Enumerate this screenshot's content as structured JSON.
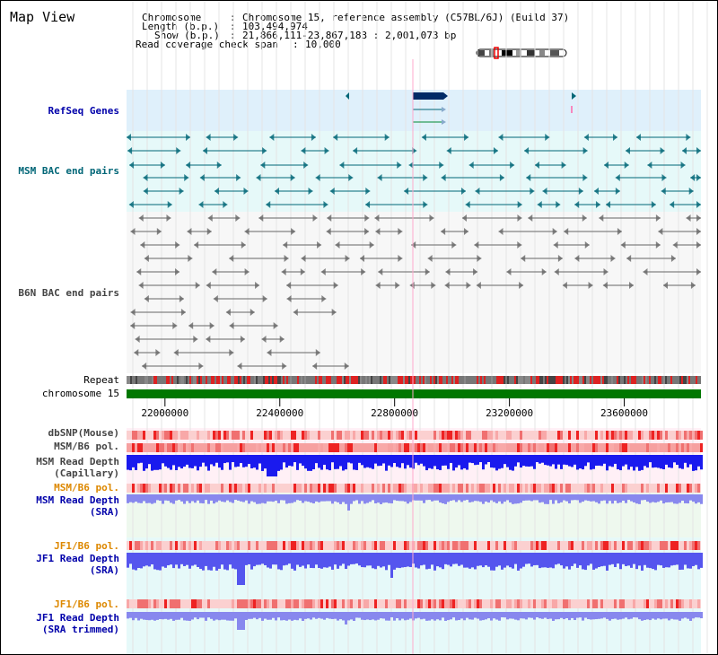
{
  "page": {
    "title": "Map View"
  },
  "header": {
    "chromosome_label": "Chromosome",
    "chromosome_value": "Chromosome 15, reference assembly (C57BL/6J) (Build 37)",
    "length_label": "Length (b.p.)",
    "length_value": "103,494,974",
    "show_label": "Show (b.p.)",
    "show_value": "21,866,111-23,867,183 : 2,001,073 bp",
    "coverage_label": "Read coverage check span",
    "coverage_value": "10,000"
  },
  "tracks": {
    "refseq": "RefSeq Genes",
    "msm_bac": "MSM BAC end pairs",
    "b6n_bac": "B6N BAC end pairs",
    "repeat": "Repeat",
    "chrom": "chromosome 15",
    "dbsnp": "dbSNP(Mouse)",
    "msm_b6_pol_1": "MSM/B6 pol.",
    "msm_depth_cap_1": "MSM Read Depth",
    "msm_depth_cap_2": "(Capillary)",
    "msm_b6_pol_2": "MSM/B6 pol.",
    "msm_depth_sra_1": "MSM Read Depth",
    "msm_depth_sra_2": "(SRA)",
    "jf1_b6_pol_1": "JF1/B6 pol.",
    "jf1_depth_sra_1": "JF1 Read Depth",
    "jf1_depth_sra_2": "(SRA)",
    "jf1_b6_pol_2": "JF1/B6 pol.",
    "jf1_depth_trim_1": "JF1 Read Depth",
    "jf1_depth_trim_2": "(SRA trimmed)"
  },
  "axis": {
    "ticks": [
      {
        "value": 22000000,
        "label": "22000000"
      },
      {
        "value": 22400000,
        "label": "22400000"
      },
      {
        "value": 22800000,
        "label": "22800000"
      },
      {
        "value": 23200000,
        "label": "23200000"
      },
      {
        "value": 23600000,
        "label": "23600000"
      }
    ],
    "view_start": 21866111,
    "view_end": 23867183
  },
  "colors": {
    "refseq_bg": "#dff0fb",
    "msm_bg": "#e6f9f9",
    "b6n_bg": "#f7f7f7",
    "chrom_green": "#007700",
    "msm_line": "#006677",
    "b6n_line": "#666666",
    "gene_dark": "#002a66",
    "gene_line": "#008833",
    "depth_blue": "#1a1aee",
    "depth_light": "#8888ee",
    "depth_mid": "#5555ee",
    "pol_red": "#ee2222",
    "label_blue": "#0000aa",
    "label_teal": "#006677",
    "label_orange": "#dd8800"
  }
}
